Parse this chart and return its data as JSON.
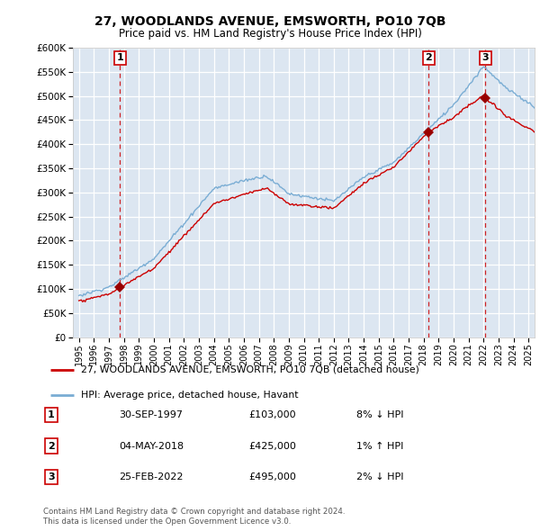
{
  "title": "27, WOODLANDS AVENUE, EMSWORTH, PO10 7QB",
  "subtitle": "Price paid vs. HM Land Registry's House Price Index (HPI)",
  "legend_line1": "27, WOODLANDS AVENUE, EMSWORTH, PO10 7QB (detached house)",
  "legend_line2": "HPI: Average price, detached house, Havant",
  "footer_line1": "Contains HM Land Registry data © Crown copyright and database right 2024.",
  "footer_line2": "This data is licensed under the Open Government Licence v3.0.",
  "sales": [
    {
      "num": 1,
      "date": "30-SEP-1997",
      "price": 103000,
      "year": 1997.75,
      "pct": "8%",
      "dir": "↓"
    },
    {
      "num": 2,
      "date": "04-MAY-2018",
      "price": 425000,
      "year": 2018.33,
      "pct": "1%",
      "dir": "↑"
    },
    {
      "num": 3,
      "date": "25-FEB-2022",
      "price": 495000,
      "year": 2022.12,
      "pct": "2%",
      "dir": "↓"
    }
  ],
  "ylim": [
    0,
    600000
  ],
  "yticks": [
    0,
    50000,
    100000,
    150000,
    200000,
    250000,
    300000,
    350000,
    400000,
    450000,
    500000,
    550000,
    600000
  ],
  "xlim_start": 1994.6,
  "xlim_end": 2025.4,
  "bg_color": "#dce6f1",
  "grid_color": "#ffffff",
  "red_line_color": "#cc0000",
  "blue_line_color": "#7aadd4",
  "sale_marker_color": "#990000",
  "vline_color": "#cc0000",
  "box_edge_color": "#cc0000",
  "legend_border_color": "#999999",
  "table_border_color": "#cc0000"
}
